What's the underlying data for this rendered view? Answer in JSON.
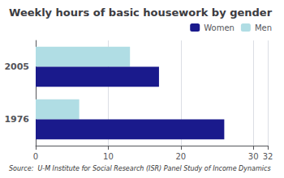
{
  "chart_data": {
    "type": "bar",
    "orientation": "horizontal",
    "title": "Weekly hours of basic housework by gender",
    "annotations": [
      "Source:  U-M Institute for Social Research (ISR) Panel Study of Income Dynamics"
    ],
    "categories": [
      "1976",
      "2005"
    ],
    "series": [
      {
        "name": "Women",
        "color": "#1a1a8c",
        "values": [
          26,
          17
        ]
      },
      {
        "name": "Men",
        "color": "#b0dde4",
        "values": [
          6,
          13
        ]
      }
    ],
    "xlim": [
      0,
      32
    ],
    "xticks": [
      0,
      10,
      20,
      30
    ],
    "grid": true,
    "legend": "upper right"
  }
}
